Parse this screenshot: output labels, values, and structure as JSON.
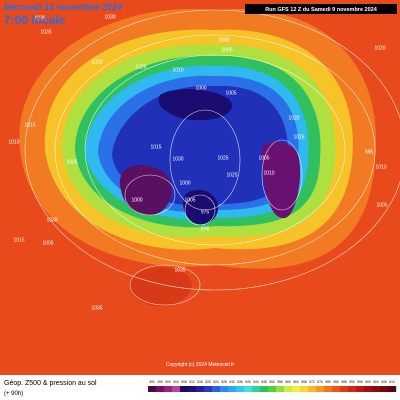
{
  "header": {
    "title": "Mercredi 13 novembre 2024",
    "time": "7:00 locale",
    "run": "Run GFS 12 Z du Samedi 9 novembre 2024"
  },
  "footer": {
    "caption": "Géop. Z500 & pression au sol",
    "lead": "(+ 90h)"
  },
  "copyright": "Copyright (c) 2024 Meteociel.fr",
  "pressure_labels": [
    "1036",
    "1035",
    "1030",
    "1020",
    "1025",
    "1000",
    "1005",
    "1010",
    "1000",
    "1005",
    "1015",
    "1025",
    "1020",
    "1025",
    "1005",
    "1010",
    "1030",
    "1025",
    "1025",
    "1000",
    "1000",
    "1005",
    "975",
    "976",
    "1030",
    "1015",
    "1005",
    "1035",
    "1035",
    "1010",
    "1015",
    "995",
    "1010",
    "1005",
    "1020"
  ],
  "colorbar": {
    "labels": [
      492,
      496,
      500,
      504,
      508,
      512,
      516,
      520,
      524,
      528,
      532,
      536,
      540,
      544,
      548,
      552,
      556,
      560,
      564,
      568,
      572,
      576,
      580,
      584,
      588,
      592,
      596,
      600,
      604,
      608,
      612
    ],
    "colors": [
      "#4b0a3a",
      "#7a1060",
      "#a0207a",
      "#c040a0",
      "#1a0a60",
      "#20107a",
      "#2020a0",
      "#2a3ac0",
      "#2a60e0",
      "#3088f0",
      "#30a8f0",
      "#30c8f0",
      "#40e0e0",
      "#30d0a0",
      "#30c060",
      "#50d040",
      "#90e040",
      "#c8f040",
      "#f0f040",
      "#f8d830",
      "#f8b828",
      "#f89820",
      "#f07818",
      "#e85818",
      "#e03a18",
      "#d02818",
      "#b81818",
      "#a01010",
      "#880c10",
      "#700810",
      "#5a0410"
    ]
  }
}
